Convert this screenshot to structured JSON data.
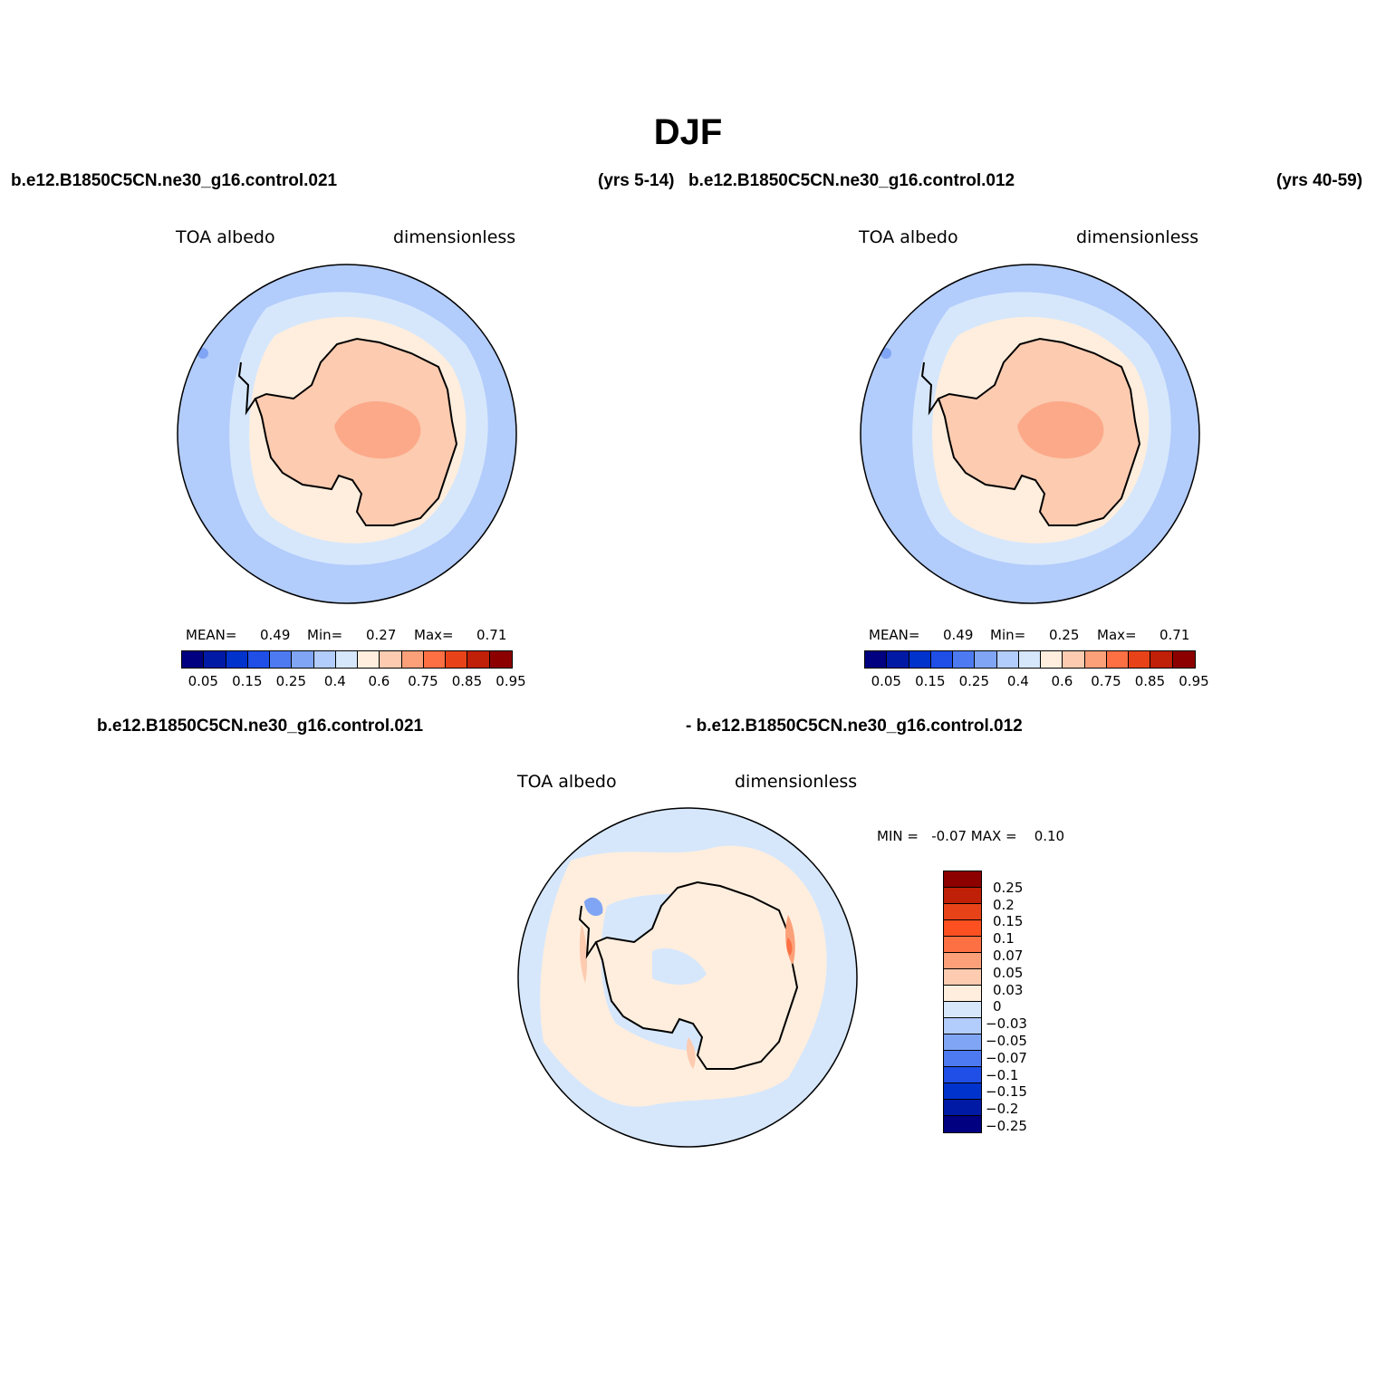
{
  "title": "DJF",
  "panels": [
    {
      "case_left": "b.e12.B1850C5CN.ne30_g16.control.021",
      "case_right": "(yrs 5-14)",
      "variable": "TOA albedo",
      "units": "dimensionless",
      "mean_label": "MEAN=",
      "mean_value": "0.49",
      "min_label": "Min=",
      "min_value": "0.27",
      "max_label": "Max=",
      "max_value": "0.71"
    },
    {
      "case_left": "b.e12.B1850C5CN.ne30_g16.control.012",
      "case_right": "(yrs 40-59)",
      "variable": "TOA albedo",
      "units": "dimensionless",
      "mean_label": "MEAN=",
      "mean_value": "0.49",
      "min_label": "Min=",
      "min_value": "0.25",
      "max_label": "Max=",
      "max_value": "0.71"
    }
  ],
  "diff_panel": {
    "case_left": "b.e12.B1850C5CN.ne30_g16.control.021",
    "case_right": "- b.e12.B1850C5CN.ne30_g16.control.012",
    "variable": "TOA albedo",
    "units": "dimensionless",
    "minmax_text": "MIN =   -0.07 MAX =    0.10"
  },
  "colorbar_main": {
    "colors": [
      "#000080",
      "#001aa6",
      "#0033cc",
      "#1f4fe6",
      "#4d7af0",
      "#80a5f5",
      "#b2ccfb",
      "#d6e7fc",
      "#ffeedd",
      "#fccbb0",
      "#fca07a",
      "#fc7044",
      "#e84318",
      "#bf2007",
      "#8c0000"
    ],
    "tick_labels": [
      "0.05",
      "0.15",
      "0.25",
      "0.4",
      "0.6",
      "0.75",
      "0.85",
      "0.95"
    ]
  },
  "colorbar_diff": {
    "colors_top_to_bottom": [
      "#8c0000",
      "#bf2007",
      "#e84318",
      "#fc5020",
      "#fc7044",
      "#fca07a",
      "#fccbb0",
      "#ffeedd",
      "#d6e7fc",
      "#b2ccfb",
      "#80a5f5",
      "#4d7af0",
      "#1f4fe6",
      "#0033cc",
      "#001aa6",
      "#000080"
    ],
    "tick_labels_top_to_bottom": [
      "0.25",
      "0.2",
      "0.15",
      "0.1",
      "0.07",
      "0.05",
      "0.03",
      "0",
      "−0.03",
      "−0.05",
      "−0.07",
      "−0.1",
      "−0.15",
      "−0.2",
      "−0.25"
    ]
  },
  "map_colors": {
    "ocean_outer": "#b2ccfb",
    "ocean_mid": "#d6e7fc",
    "sea_ice": "#ffeedd",
    "continent": "#fccbb0",
    "plateau": "#fca98a",
    "diff_neutral_pos": "#ffeedd",
    "diff_neutral_neg": "#d6e7fc",
    "diff_pos_strong": "#fc7044",
    "diff_neg": "#80a5f5"
  }
}
